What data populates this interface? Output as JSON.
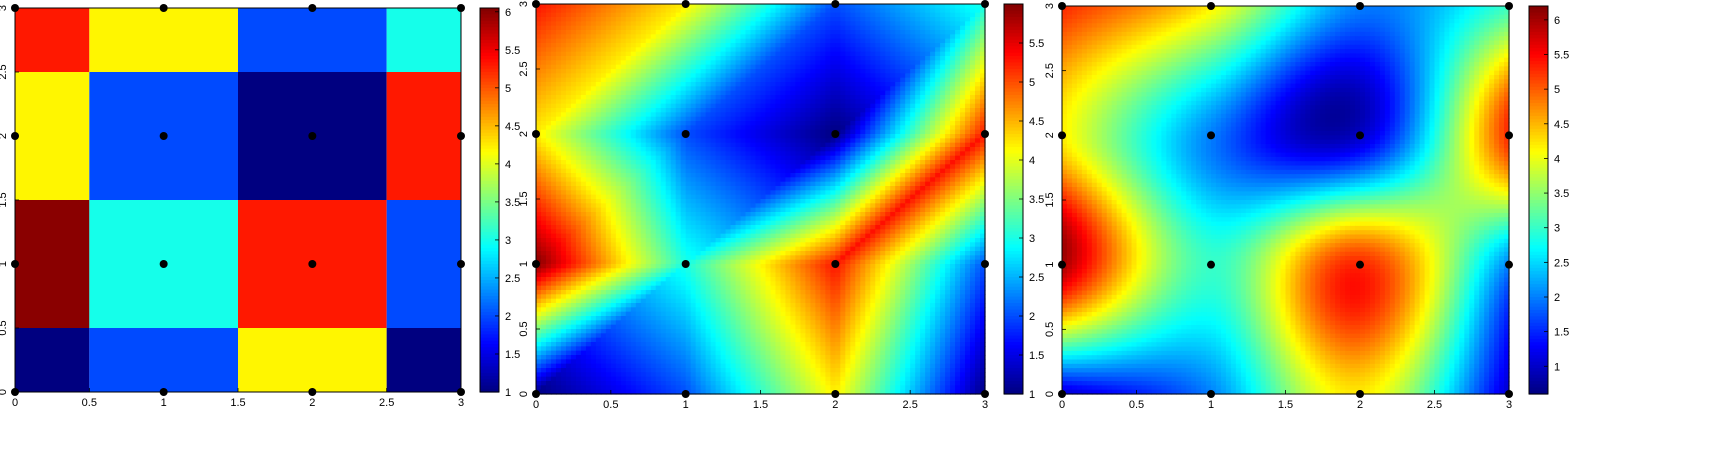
{
  "chart_data": [
    {
      "type": "heatmap",
      "subtype": "nearest-neighbor interpolation",
      "title": "",
      "xlabel": "",
      "ylabel": "",
      "xlim": [
        0,
        3
      ],
      "ylim": [
        0,
        3
      ],
      "xticks": [
        0,
        0.5,
        1,
        1.5,
        2,
        2.5,
        3
      ],
      "yticks": [
        0,
        0.5,
        1,
        1.5,
        2,
        2.5,
        3
      ],
      "xtick_labels": [
        "0",
        "0.5",
        "1",
        "1.5",
        "2",
        "2.5",
        "3"
      ],
      "ytick_labels": [
        "0",
        "0.5",
        "1",
        "1.5",
        "2",
        "2.5",
        "3"
      ],
      "colormap": "jet",
      "colorbar": {
        "min": 1,
        "max": 6.05,
        "ticks": [
          1,
          1.5,
          2,
          2.5,
          3,
          3.5,
          4,
          4.5,
          5,
          5.5,
          6
        ],
        "tick_labels": [
          "1",
          "1.5",
          "2",
          "2.5",
          "3",
          "3.5",
          "4",
          "4.5",
          "5",
          "5.5",
          "6"
        ]
      },
      "sample_x": [
        0,
        1,
        2,
        3
      ],
      "sample_y": [
        0,
        1,
        2,
        3
      ],
      "values_rows_y0_to_y3": [
        [
          1,
          2,
          4.2,
          1
        ],
        [
          6,
          3,
          5.3,
          2
        ],
        [
          4.2,
          2,
          1,
          5.3
        ],
        [
          5.3,
          4.2,
          2,
          3
        ]
      ]
    },
    {
      "type": "heatmap",
      "subtype": "linear (triangulated) interpolation",
      "title": "",
      "xlabel": "",
      "ylabel": "",
      "xlim": [
        0,
        3
      ],
      "ylim": [
        0,
        3
      ],
      "xticks": [
        0,
        0.5,
        1,
        1.5,
        2,
        2.5,
        3
      ],
      "yticks": [
        0,
        0.5,
        1,
        1.5,
        2,
        2.5,
        3
      ],
      "xtick_labels": [
        "0",
        "0.5",
        "1",
        "1.5",
        "2",
        "2.5",
        "3"
      ],
      "ytick_labels": [
        "0",
        "0.5",
        "1",
        "1.5",
        "2",
        "2.5",
        "3"
      ],
      "colormap": "jet",
      "colorbar": {
        "min": 1,
        "max": 6,
        "ticks": [
          1.5,
          2,
          2.5,
          3,
          3.5,
          4,
          4.5,
          5,
          5.5
        ],
        "tick_labels": [
          "1.5",
          "2",
          "2.5",
          "3",
          "3.5",
          "4",
          "4.5",
          "5",
          "5.5"
        ],
        "min_label": "1"
      },
      "sample_x": [
        0,
        1,
        2,
        3
      ],
      "sample_y": [
        0,
        1,
        2,
        3
      ],
      "values_rows_y0_to_y3": [
        [
          1,
          2,
          4.2,
          1
        ],
        [
          6,
          3,
          5.3,
          2
        ],
        [
          4.2,
          2,
          1,
          5.3
        ],
        [
          5.3,
          4.2,
          2,
          3
        ]
      ]
    },
    {
      "type": "heatmap",
      "subtype": "smooth (cubic) interpolation",
      "title": "",
      "xlabel": "",
      "ylabel": "",
      "xlim": [
        0,
        3
      ],
      "ylim": [
        0,
        3
      ],
      "xticks": [
        0,
        0.5,
        1,
        1.5,
        2,
        2.5,
        3
      ],
      "yticks": [
        0,
        0.5,
        1,
        1.5,
        2,
        2.5,
        3
      ],
      "xtick_labels": [
        "0",
        "0.5",
        "1",
        "1.5",
        "2",
        "2.5",
        "3"
      ],
      "ytick_labels": [
        "0",
        "0.5",
        "1",
        "1.5",
        "2",
        "2.5",
        "3"
      ],
      "colormap": "jet",
      "colorbar": {
        "min": 0.6,
        "max": 6.2,
        "ticks": [
          1,
          1.5,
          2,
          2.5,
          3,
          3.5,
          4,
          4.5,
          5,
          5.5,
          6
        ],
        "tick_labels": [
          "1",
          "1.5",
          "2",
          "2.5",
          "3",
          "3.5",
          "4",
          "4.5",
          "5",
          "5.5",
          "6"
        ]
      },
      "sample_x": [
        0,
        1,
        2,
        3
      ],
      "sample_y": [
        0,
        1,
        2,
        3
      ],
      "values_rows_y0_to_y3": [
        [
          1,
          2,
          4.2,
          1
        ],
        [
          6,
          3,
          5.3,
          2
        ],
        [
          4.2,
          2,
          1,
          5.3
        ],
        [
          5.3,
          4.2,
          2,
          3
        ]
      ]
    }
  ]
}
